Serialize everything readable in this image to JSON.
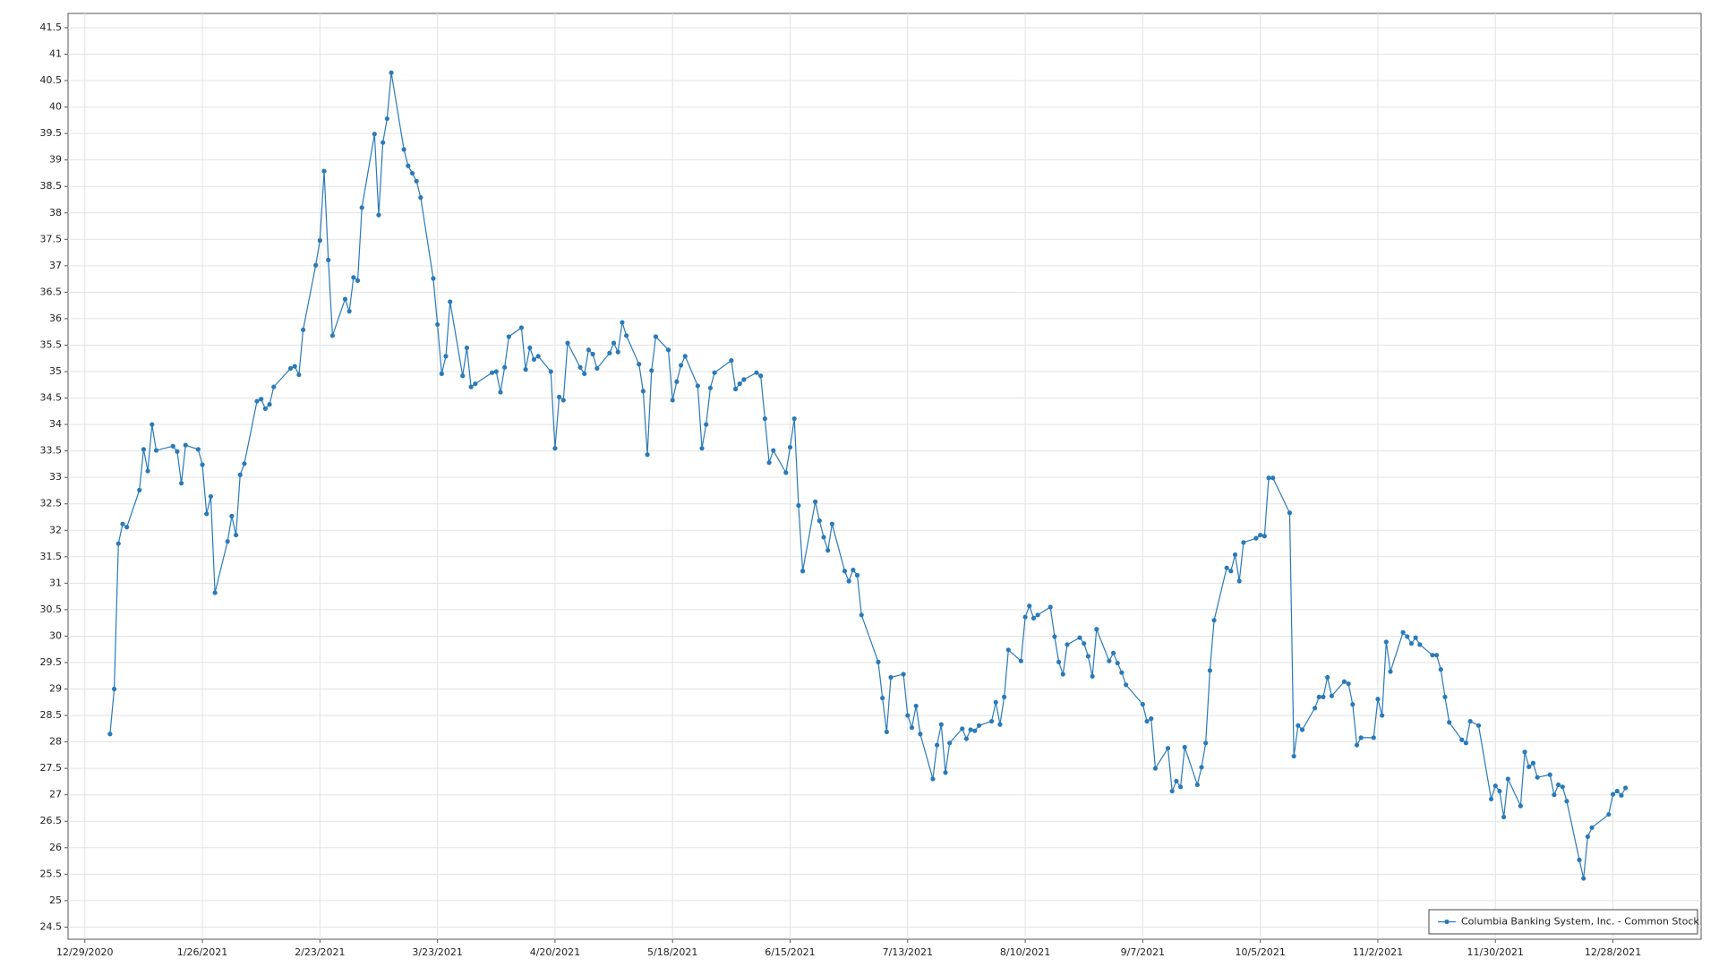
{
  "chart_data": {
    "type": "line",
    "x": [
      "1/4/2021",
      "1/5/2021",
      "1/6/2021",
      "1/7/2021",
      "1/8/2021",
      "1/11/2021",
      "1/12/2021",
      "1/13/2021",
      "1/14/2021",
      "1/15/2021",
      "1/19/2021",
      "1/20/2021",
      "1/21/2021",
      "1/22/2021",
      "1/25/2021",
      "1/26/2021",
      "1/27/2021",
      "1/28/2021",
      "1/29/2021",
      "2/1/2021",
      "2/2/2021",
      "2/3/2021",
      "2/4/2021",
      "2/5/2021",
      "2/8/2021",
      "2/9/2021",
      "2/10/2021",
      "2/11/2021",
      "2/12/2021",
      "2/16/2021",
      "2/17/2021",
      "2/18/2021",
      "2/19/2021",
      "2/22/2021",
      "2/23/2021",
      "2/24/2021",
      "2/25/2021",
      "2/26/2021",
      "3/1/2021",
      "3/2/2021",
      "3/3/2021",
      "3/4/2021",
      "3/5/2021",
      "3/8/2021",
      "3/9/2021",
      "3/10/2021",
      "3/11/2021",
      "3/12/2021",
      "3/15/2021",
      "3/16/2021",
      "3/17/2021",
      "3/18/2021",
      "3/19/2021",
      "3/22/2021",
      "3/23/2021",
      "3/24/2021",
      "3/25/2021",
      "3/26/2021",
      "3/29/2021",
      "3/30/2021",
      "3/31/2021",
      "4/1/2021",
      "4/5/2021",
      "4/6/2021",
      "4/7/2021",
      "4/8/2021",
      "4/9/2021",
      "4/12/2021",
      "4/13/2021",
      "4/14/2021",
      "4/15/2021",
      "4/16/2021",
      "4/19/2021",
      "4/20/2021",
      "4/21/2021",
      "4/22/2021",
      "4/23/2021",
      "4/26/2021",
      "4/27/2021",
      "4/28/2021",
      "4/29/2021",
      "4/30/2021",
      "5/3/2021",
      "5/4/2021",
      "5/5/2021",
      "5/6/2021",
      "5/7/2021",
      "5/10/2021",
      "5/11/2021",
      "5/12/2021",
      "5/13/2021",
      "5/14/2021",
      "5/17/2021",
      "5/18/2021",
      "5/19/2021",
      "5/20/2021",
      "5/21/2021",
      "5/24/2021",
      "5/25/2021",
      "5/26/2021",
      "5/27/2021",
      "5/28/2021",
      "6/1/2021",
      "6/2/2021",
      "6/3/2021",
      "6/4/2021",
      "6/7/2021",
      "6/8/2021",
      "6/9/2021",
      "6/10/2021",
      "6/11/2021",
      "6/14/2021",
      "6/15/2021",
      "6/16/2021",
      "6/17/2021",
      "6/18/2021",
      "6/21/2021",
      "6/22/2021",
      "6/23/2021",
      "6/24/2021",
      "6/25/2021",
      "6/28/2021",
      "6/29/2021",
      "6/30/2021",
      "7/1/2021",
      "7/2/2021",
      "7/6/2021",
      "7/7/2021",
      "7/8/2021",
      "7/9/2021",
      "7/12/2021",
      "7/13/2021",
      "7/14/2021",
      "7/15/2021",
      "7/16/2021",
      "7/19/2021",
      "7/20/2021",
      "7/21/2021",
      "7/22/2021",
      "7/23/2021",
      "7/26/2021",
      "7/27/2021",
      "7/28/2021",
      "7/29/2021",
      "7/30/2021",
      "8/2/2021",
      "8/3/2021",
      "8/4/2021",
      "8/5/2021",
      "8/6/2021",
      "8/9/2021",
      "8/10/2021",
      "8/11/2021",
      "8/12/2021",
      "8/13/2021",
      "8/16/2021",
      "8/17/2021",
      "8/18/2021",
      "8/19/2021",
      "8/20/2021",
      "8/23/2021",
      "8/24/2021",
      "8/25/2021",
      "8/26/2021",
      "8/27/2021",
      "8/30/2021",
      "8/31/2021",
      "9/1/2021",
      "9/2/2021",
      "9/3/2021",
      "9/7/2021",
      "9/8/2021",
      "9/9/2021",
      "9/10/2021",
      "9/13/2021",
      "9/14/2021",
      "9/15/2021",
      "9/16/2021",
      "9/17/2021",
      "9/20/2021",
      "9/21/2021",
      "9/22/2021",
      "9/23/2021",
      "9/24/2021",
      "9/27/2021",
      "9/28/2021",
      "9/29/2021",
      "9/30/2021",
      "10/1/2021",
      "10/4/2021",
      "10/5/2021",
      "10/6/2021",
      "10/7/2021",
      "10/8/2021",
      "10/12/2021",
      "10/13/2021",
      "10/14/2021",
      "10/15/2021",
      "10/18/2021",
      "10/19/2021",
      "10/20/2021",
      "10/21/2021",
      "10/22/2021",
      "10/25/2021",
      "10/26/2021",
      "10/27/2021",
      "10/28/2021",
      "10/29/2021",
      "11/1/2021",
      "11/2/2021",
      "11/3/2021",
      "11/4/2021",
      "11/5/2021",
      "11/8/2021",
      "11/9/2021",
      "11/10/2021",
      "11/11/2021",
      "11/12/2021",
      "11/15/2021",
      "11/16/2021",
      "11/17/2021",
      "11/18/2021",
      "11/19/2021",
      "11/22/2021",
      "11/23/2021",
      "11/24/2021",
      "11/26/2021",
      "11/29/2021",
      "11/30/2021",
      "12/1/2021",
      "12/2/2021",
      "12/3/2021",
      "12/6/2021",
      "12/7/2021",
      "12/8/2021",
      "12/9/2021",
      "12/10/2021",
      "12/13/2021",
      "12/14/2021",
      "12/15/2021",
      "12/16/2021",
      "12/17/2021",
      "12/20/2021",
      "12/21/2021",
      "12/22/2021",
      "12/23/2021",
      "12/27/2021",
      "12/28/2021",
      "12/29/2021",
      "12/30/2021",
      "12/31/2021"
    ],
    "series": [
      {
        "name": "Columbia Banking System, Inc. - Common Stock",
        "color": "#2a7ab8",
        "values": [
          28.15,
          29.0,
          31.75,
          32.12,
          32.06,
          32.76,
          33.53,
          33.12,
          34.0,
          33.51,
          33.59,
          33.49,
          32.89,
          33.61,
          33.53,
          33.24,
          32.31,
          32.64,
          30.82,
          31.79,
          32.27,
          31.91,
          33.05,
          33.26,
          34.44,
          34.48,
          34.3,
          34.38,
          34.71,
          35.06,
          35.1,
          34.94,
          35.79,
          37.01,
          37.48,
          38.79,
          37.11,
          35.68,
          36.37,
          36.14,
          36.78,
          36.72,
          38.1,
          39.49,
          37.96,
          39.33,
          39.78,
          40.65,
          39.2,
          38.89,
          38.75,
          38.6,
          38.29,
          36.76,
          35.89,
          34.96,
          35.29,
          36.32,
          34.92,
          35.45,
          34.71,
          34.77,
          34.98,
          35.0,
          34.61,
          35.08,
          35.66,
          35.83,
          35.04,
          35.45,
          35.23,
          35.29,
          35.0,
          33.55,
          34.52,
          34.46,
          35.54,
          35.08,
          34.96,
          35.41,
          35.33,
          35.06,
          35.35,
          35.54,
          35.37,
          35.93,
          35.68,
          35.14,
          34.63,
          33.43,
          35.02,
          35.66,
          35.41,
          34.46,
          34.81,
          35.12,
          35.29,
          34.73,
          33.55,
          34.0,
          34.69,
          34.98,
          35.21,
          34.67,
          34.77,
          34.85,
          34.98,
          34.92,
          34.11,
          33.28,
          33.51,
          33.09,
          33.57,
          34.11,
          32.47,
          31.23,
          32.54,
          32.18,
          31.87,
          31.62,
          32.12,
          31.23,
          31.04,
          31.25,
          31.15,
          30.4,
          29.51,
          28.83,
          28.19,
          29.22,
          29.28,
          28.5,
          28.27,
          28.68,
          28.15,
          27.3,
          27.94,
          28.33,
          27.42,
          27.98,
          28.25,
          28.06,
          28.23,
          28.21,
          28.31,
          28.39,
          28.75,
          28.33,
          28.85,
          29.74,
          29.53,
          30.36,
          30.57,
          30.34,
          30.4,
          30.55,
          29.99,
          29.51,
          29.28,
          29.84,
          29.97,
          29.86,
          29.62,
          29.24,
          30.13,
          29.53,
          29.68,
          29.49,
          29.31,
          29.08,
          28.71,
          28.39,
          28.44,
          27.5,
          27.88,
          27.07,
          27.26,
          27.15,
          27.9,
          27.19,
          27.52,
          27.98,
          29.35,
          30.3,
          31.29,
          31.23,
          31.54,
          31.04,
          31.77,
          31.85,
          31.91,
          31.89,
          32.99,
          32.99,
          32.33,
          27.73,
          28.31,
          28.23,
          28.64,
          28.85,
          28.85,
          29.22,
          28.87,
          29.14,
          29.1,
          28.71,
          27.94,
          28.08,
          28.08,
          28.81,
          28.5,
          29.89,
          29.33,
          30.07,
          29.99,
          29.86,
          29.97,
          29.84,
          29.64,
          29.64,
          29.37,
          28.85,
          28.37,
          28.04,
          27.98,
          28.39,
          28.31,
          26.92,
          27.17,
          27.07,
          26.58,
          27.3,
          26.79,
          27.81,
          27.53,
          27.6,
          27.33,
          27.38,
          27.0,
          27.19,
          27.15,
          26.88,
          25.77,
          25.42,
          26.21,
          26.38,
          26.63,
          27.01,
          27.07,
          26.99,
          27.13
        ]
      }
    ],
    "xlim": [
      "12/25/2020",
      "1/18/2022"
    ],
    "xticks": [
      "12/29/2020",
      "1/26/2021",
      "2/23/2021",
      "3/23/2021",
      "4/20/2021",
      "5/18/2021",
      "6/15/2021",
      "7/13/2021",
      "8/10/2021",
      "9/7/2021",
      "10/5/2021",
      "11/2/2021",
      "11/30/2021",
      "12/28/2021"
    ],
    "ylim": [
      24.27,
      41.77
    ],
    "yticks": [
      24.5,
      25,
      25.5,
      26,
      26.5,
      27,
      27.5,
      28,
      28.5,
      29,
      29.5,
      30,
      30.5,
      31,
      31.5,
      32,
      32.5,
      33,
      33.5,
      34,
      34.5,
      35,
      35.5,
      36,
      36.5,
      37,
      37.5,
      38,
      38.5,
      39,
      39.5,
      40,
      40.5,
      41,
      41.5
    ],
    "grid": true,
    "legend": "lower right"
  }
}
